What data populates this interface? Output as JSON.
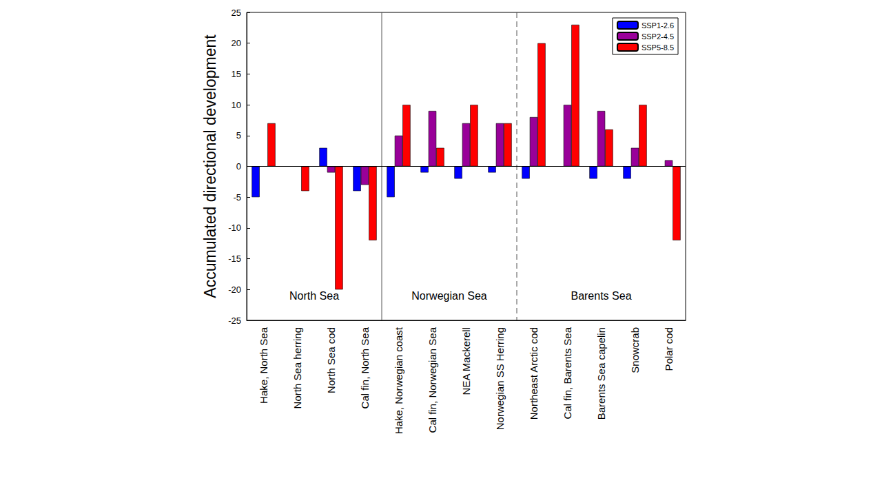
{
  "chart_data": {
    "type": "bar",
    "y_label": "Accumulated directional development",
    "categories": [
      "Hake, North Sea",
      "North Sea herring",
      "North Sea cod",
      "Cal fin, North Sea",
      "Hake, Norwegian coast",
      "Cal fin, Norwegian Sea",
      "NEA Mackerell",
      "Norwegian SS Herring",
      "Northeast Arctic cod",
      "Cal fin, Barents Sea",
      "Barents Sea capelin",
      "Snowcrab",
      "Polar cod"
    ],
    "series": [
      {
        "name": "SSP1-2.6",
        "color": "#0000ff",
        "values": [
          -5,
          0,
          3,
          -4,
          -5,
          -1,
          -2,
          -1,
          -2,
          0,
          -2,
          -2,
          0
        ]
      },
      {
        "name": "SSP2-4.5",
        "color": "#990099",
        "values": [
          0,
          0,
          -1,
          -3,
          5,
          9,
          7,
          7,
          8,
          10,
          9,
          3,
          1
        ]
      },
      {
        "name": "SSP5-8.5",
        "color": "#ff0000",
        "values": [
          7,
          -4,
          -20,
          -12,
          10,
          3,
          10,
          7,
          20,
          23,
          6,
          10,
          -12
        ]
      }
    ],
    "annotations": [
      {
        "text": "North Sea",
        "from": "Hake, North Sea",
        "to": "Cal fin, North Sea",
        "line_style": "solid"
      },
      {
        "text": "Norwegian Sea",
        "from": "Hake, Norwegian coast",
        "to": "Norwegian SS Herring",
        "line_style": "dashed"
      },
      {
        "text": "Barents Sea",
        "from": "Northeast Arctic cod",
        "to": "Polar cod"
      }
    ],
    "ylim": [
      -25,
      25
    ],
    "yticks": [
      -25,
      -20,
      -15,
      -10,
      -5,
      0,
      5,
      10,
      15,
      20,
      25
    ],
    "grid": false,
    "legend": "upper right"
  }
}
